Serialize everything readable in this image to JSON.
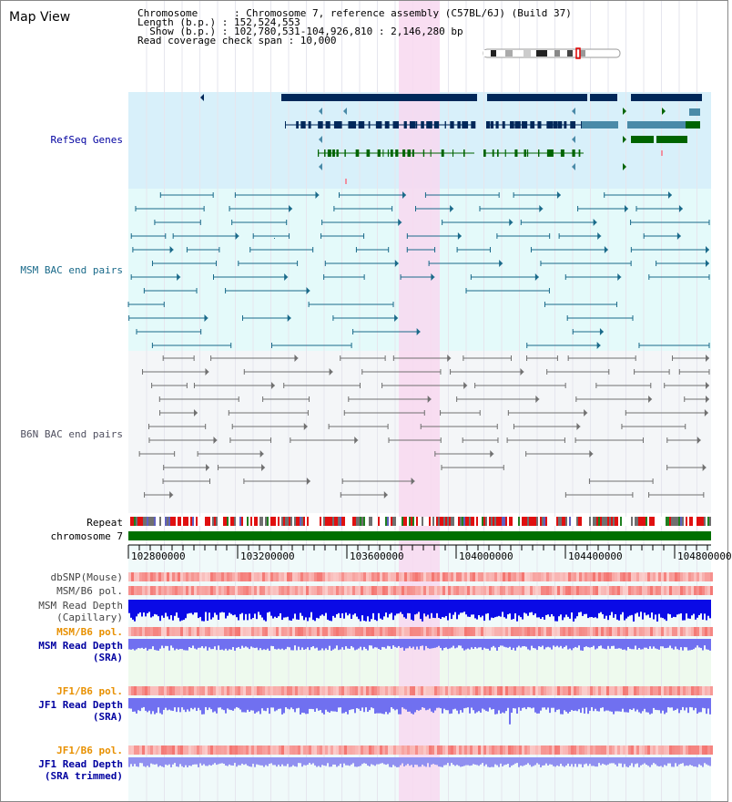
{
  "view_title": "Map View",
  "info": {
    "chromosome_line": "Chromosome      : Chromosome 7, reference assembly (C57BL/6J) (Build 37)",
    "length_line": "Length (b.p.) : 152,524,553",
    "show_line": "  Show (b.p.) : 102,780,531-104,926,810 : 2,146,280 bp",
    "coverage_line": "Read coverage check span : 10,000"
  },
  "tracks": {
    "refseq": "RefSeq Genes",
    "msm_bac": "MSM BAC end pairs",
    "b6n_bac": "B6N BAC end pairs",
    "repeat": "Repeat",
    "chromosome": "chromosome 7",
    "dbsnp": "dbSNP(Mouse)",
    "msm_b6_pol_1": "MSM/B6 pol.",
    "msm_depth_cap_1": "MSM Read Depth",
    "msm_depth_cap_2": "(Capillary)",
    "msm_b6_pol_2": "MSM/B6 pol.",
    "msm_depth_sra_1": "MSM Read Depth",
    "msm_depth_sra_2": "(SRA)",
    "jf1_b6_pol_1": "JF1/B6 pol.",
    "jf1_depth_sra_1": "JF1 Read Depth",
    "jf1_depth_sra_2": "(SRA)",
    "jf1_b6_pol_2": "JF1/B6 pol.",
    "jf1_depth_trim_1": "JF1 Read Depth",
    "jf1_depth_trim_2": "(SRA trimmed)"
  },
  "axis_ticks": [
    "102800000",
    "103200000",
    "103600000",
    "104000000",
    "104400000",
    "104800000"
  ],
  "colors": {
    "refseq_bg": "#d8f0fa",
    "msm_bg": "#e4fafa",
    "b6n_bg": "#f4f6f8",
    "highlight": "#f8d8f0",
    "gene_dark": "#00285a",
    "gene_teal": "#4a8aa8",
    "gene_green": "#006400",
    "msm_pair": "#1a6a8a",
    "b6n_pair": "#707070",
    "chromosome_bar": "#007000",
    "depth_capillary": "#0a0ae6",
    "depth_sra": "#7070f0",
    "depth_trimmed": "#9090f0",
    "pol_red": "#e82020",
    "label_blue": "#0000a0",
    "label_orange": "#e89000"
  }
}
